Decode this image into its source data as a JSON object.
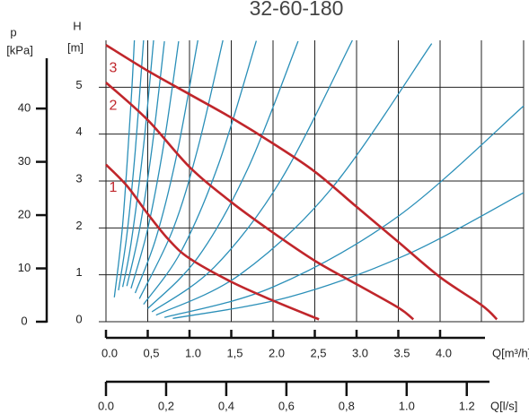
{
  "chart_data": {
    "type": "line",
    "title": "32-60-180",
    "y_label": "H",
    "y_unit": "[m]",
    "p_label": "p",
    "p_unit": "[kPa]",
    "x_label": "Q[m³/h]",
    "x2_label": "Q[l/s]",
    "xlim": [
      0,
      5
    ],
    "ylim": [
      0,
      6
    ],
    "x2lim": [
      0,
      1.3889
    ],
    "plim": [
      0,
      52.8
    ],
    "xticks": [
      {
        "value": 0,
        "label": "0.0"
      },
      {
        "value": 0.5,
        "label": "0,5"
      },
      {
        "value": 1,
        "label": "1.0"
      },
      {
        "value": 1.5,
        "label": "1,5"
      },
      {
        "value": 2,
        "label": "2.0"
      },
      {
        "value": 2.5,
        "label": "2,5"
      },
      {
        "value": 3,
        "label": "3.0"
      },
      {
        "value": 3.5,
        "label": "3.5"
      },
      {
        "value": 4,
        "label": "4.0"
      }
    ],
    "yticks": [
      0,
      1,
      2,
      3,
      4,
      5
    ],
    "x2ticks": [
      {
        "value": 0,
        "label": "0.0"
      },
      {
        "value": 0.2,
        "label": "0,2"
      },
      {
        "value": 0.4,
        "label": "0,4"
      },
      {
        "value": 0.6,
        "label": "0,6"
      },
      {
        "value": 0.8,
        "label": "0,8"
      },
      {
        "value": 1,
        "label": "1.0"
      },
      {
        "value": 1.2,
        "label": "1.2"
      }
    ],
    "pticks": [
      0,
      10,
      20,
      30,
      40
    ],
    "grid": true,
    "series": [
      {
        "name": "1",
        "color": "#c0262b",
        "x": [
          0,
          0.25,
          0.5,
          0.75,
          1,
          1.5,
          2,
          2.55
        ],
        "values": [
          3.35,
          2.9,
          2.3,
          1.75,
          1.35,
          0.85,
          0.45,
          0.05
        ]
      },
      {
        "name": "2",
        "color": "#c0262b",
        "x": [
          0,
          0.5,
          1,
          1.5,
          2,
          2.5,
          3,
          3.5,
          3.68
        ],
        "values": [
          5.1,
          4.3,
          3.3,
          2.55,
          1.9,
          1.3,
          0.8,
          0.3,
          0.05
        ]
      },
      {
        "name": "3",
        "color": "#c0262b",
        "x": [
          0,
          0.5,
          1,
          1.5,
          2,
          2.5,
          3,
          3.5,
          4,
          4.5,
          4.68
        ],
        "values": [
          5.9,
          5.35,
          4.85,
          4.35,
          3.8,
          3.2,
          2.45,
          1.7,
          0.95,
          0.35,
          0.05
        ]
      }
    ],
    "system_color": "#2a8fb8",
    "system_curves": [
      {
        "x": [
          0.1,
          0.2,
          0.3,
          0.34
        ],
        "values": [
          0.52,
          2.08,
          4.68,
          6.0
        ]
      },
      {
        "x": [
          0.15,
          0.25,
          0.35,
          0.45
        ],
        "values": [
          0.67,
          1.85,
          3.63,
          6.0
        ]
      },
      {
        "x": [
          0.2,
          0.3,
          0.45,
          0.57
        ],
        "values": [
          0.74,
          1.67,
          3.75,
          6.0
        ]
      },
      {
        "x": [
          0.25,
          0.4,
          0.55,
          0.7
        ],
        "values": [
          0.76,
          1.95,
          3.69,
          5.98
        ]
      },
      {
        "x": [
          0.3,
          0.5,
          0.7,
          0.87
        ],
        "values": [
          0.71,
          1.98,
          3.87,
          5.98
        ]
      },
      {
        "x": [
          0.35,
          0.6,
          0.85,
          1.1
        ],
        "values": [
          0.61,
          1.79,
          3.58,
          6.0
        ]
      },
      {
        "x": [
          0.4,
          0.8,
          1.1,
          1.4
        ],
        "values": [
          0.49,
          1.96,
          3.7,
          6.0
        ]
      },
      {
        "x": [
          0.45,
          0.9,
          1.35,
          1.8
        ],
        "values": [
          0.37,
          1.5,
          3.37,
          5.99
        ]
      },
      {
        "x": [
          0.5,
          1.1,
          1.7,
          2.3
        ],
        "values": [
          0.28,
          1.37,
          3.27,
          5.98
        ]
      },
      {
        "x": [
          0.55,
          1.3,
          2.1,
          2.95
        ],
        "values": [
          0.21,
          1.17,
          3.04,
          6.0
        ]
      },
      {
        "x": [
          0.6,
          1.6,
          2.7,
          3.9
        ],
        "values": [
          0.14,
          1.0,
          2.84,
          5.93
        ]
      },
      {
        "x": [
          0.7,
          2.0,
          3.5,
          5.0
        ],
        "values": [
          0.09,
          0.74,
          2.25,
          4.6
        ]
      },
      {
        "x": [
          0.8,
          2.2,
          3.6,
          5.0
        ],
        "values": [
          0.07,
          0.53,
          1.43,
          2.75
        ]
      }
    ]
  }
}
